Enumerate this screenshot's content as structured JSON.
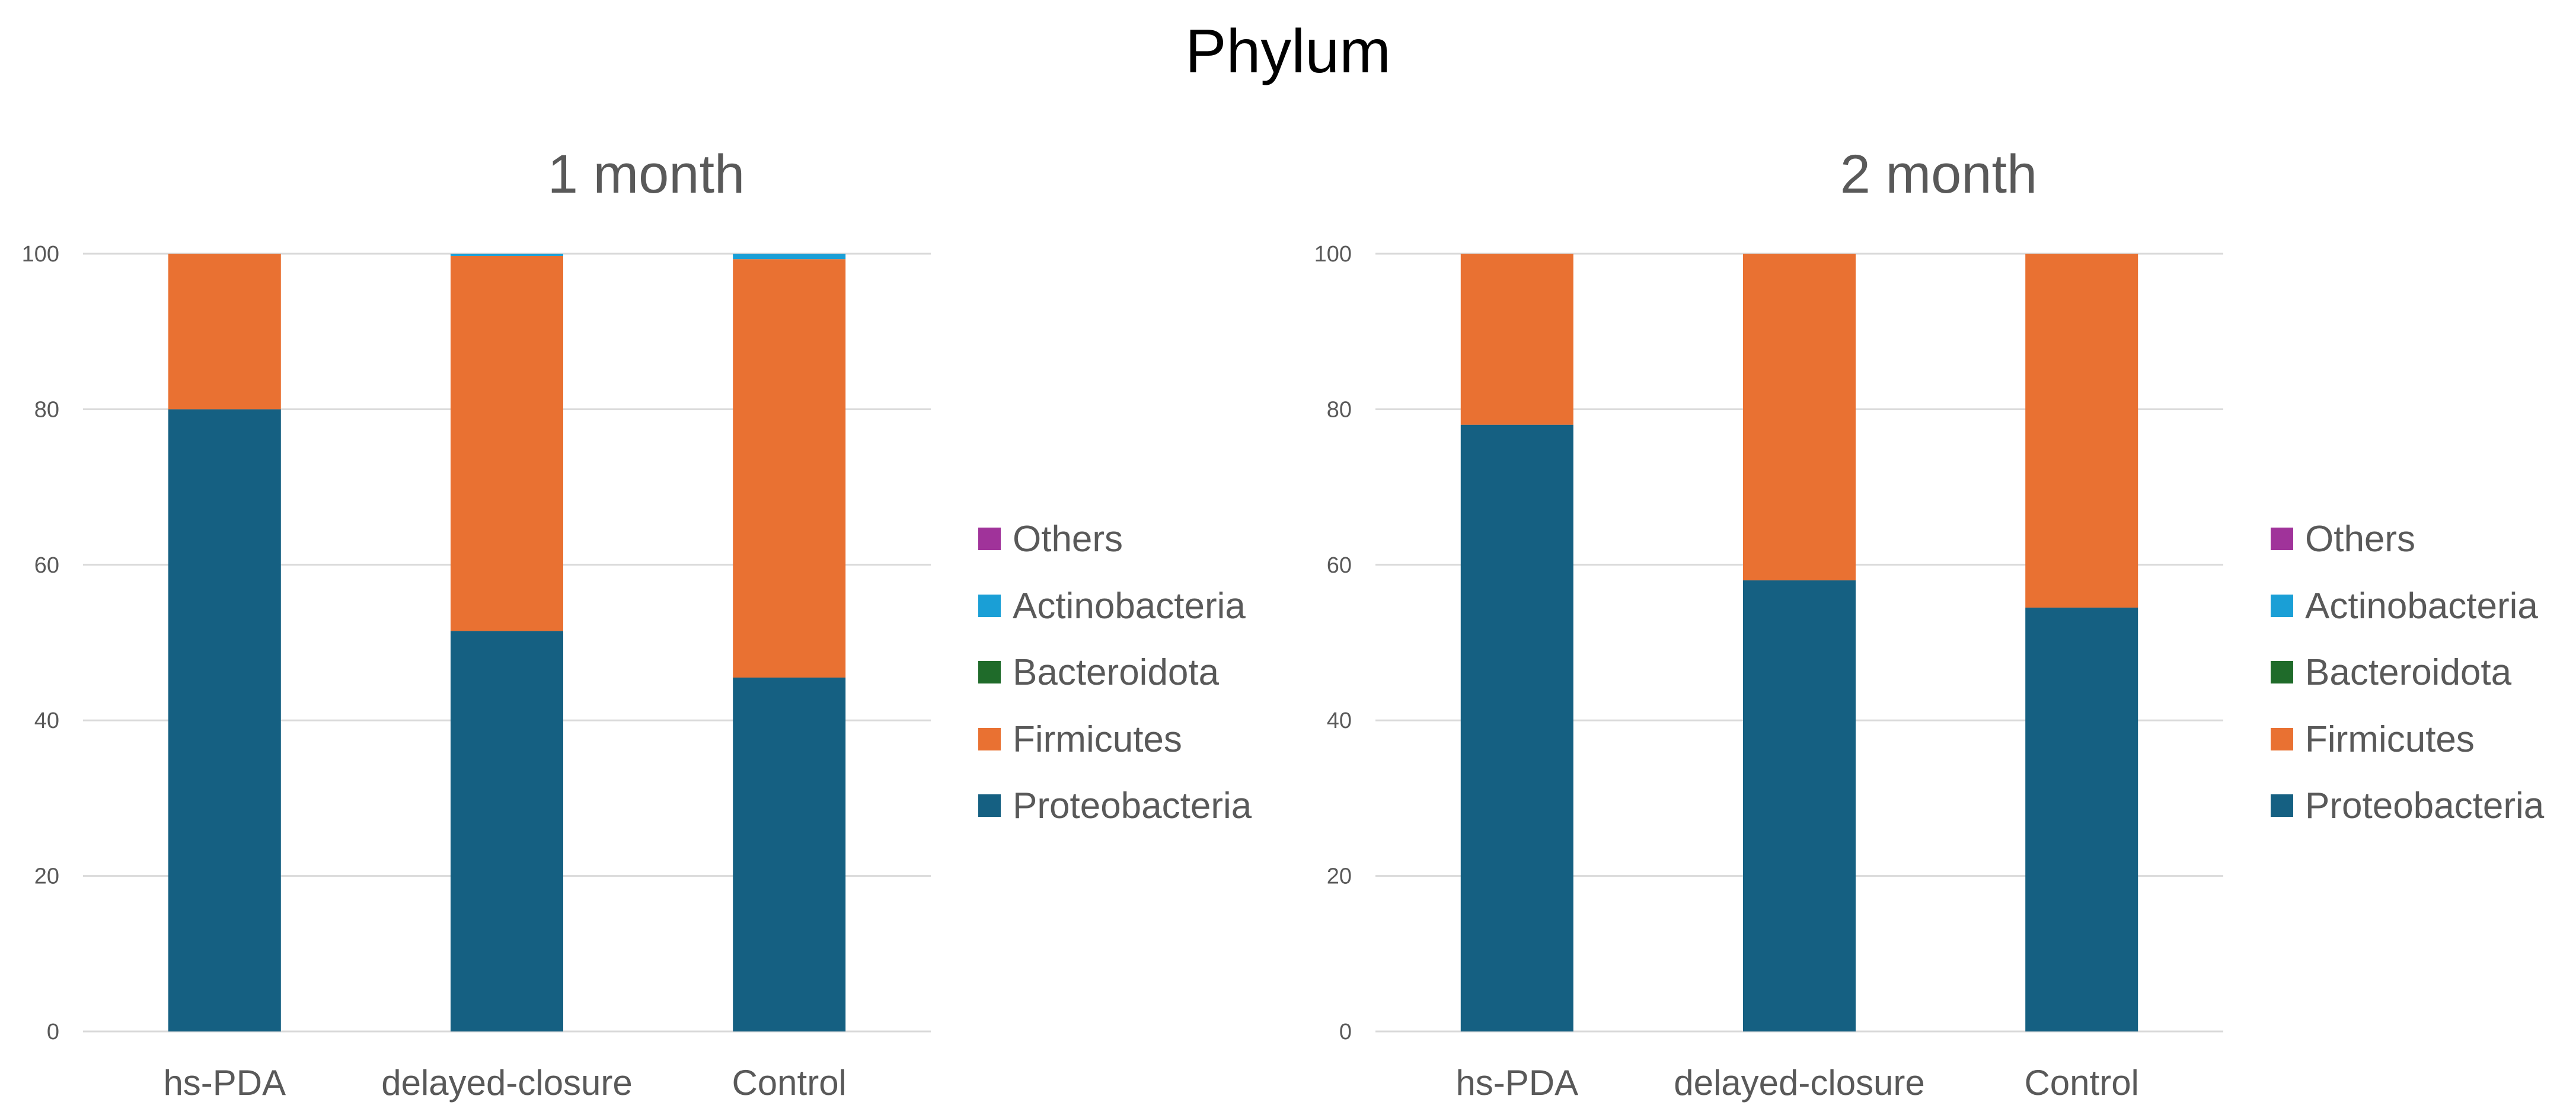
{
  "title": "Phylum",
  "legend_items": [
    {
      "name": "Others",
      "color": "#A0339A"
    },
    {
      "name": "Actinobacteria",
      "color": "#1A9FD6"
    },
    {
      "name": "Bacteroidota",
      "color": "#1F6B2A"
    },
    {
      "name": "Firmicutes",
      "color": "#E97132"
    },
    {
      "name": "Proteobacteria",
      "color": "#156082"
    }
  ],
  "chart_data": [
    {
      "type": "bar",
      "stacked": true,
      "title": "1 month",
      "categories": [
        "hs-PDA",
        "delayed-closure",
        "Control"
      ],
      "yticks": [
        "0",
        "20",
        "40",
        "60",
        "80",
        "100"
      ],
      "ylim": [
        0,
        100
      ],
      "grid": true,
      "legend_position": "right",
      "series": [
        {
          "name": "Proteobacteria",
          "color": "#156082",
          "values": [
            80,
            51.5,
            45.5
          ]
        },
        {
          "name": "Firmicutes",
          "color": "#E97132",
          "values": [
            20,
            48.2,
            53.8
          ]
        },
        {
          "name": "Bacteroidota",
          "color": "#1F6B2A",
          "values": [
            0,
            0,
            0
          ]
        },
        {
          "name": "Actinobacteria",
          "color": "#1A9FD6",
          "values": [
            0,
            0.3,
            0.7
          ]
        },
        {
          "name": "Others",
          "color": "#A0339A",
          "values": [
            0,
            0,
            0
          ]
        }
      ]
    },
    {
      "type": "bar",
      "stacked": true,
      "title": "2 month",
      "categories": [
        "hs-PDA",
        "delayed-closure",
        "Control"
      ],
      "yticks": [
        "0",
        "20",
        "40",
        "60",
        "80",
        "100"
      ],
      "ylim": [
        0,
        100
      ],
      "grid": true,
      "legend_position": "right",
      "series": [
        {
          "name": "Proteobacteria",
          "color": "#156082",
          "values": [
            78,
            58,
            54.5
          ]
        },
        {
          "name": "Firmicutes",
          "color": "#E97132",
          "values": [
            22,
            42,
            45.5
          ]
        },
        {
          "name": "Bacteroidota",
          "color": "#1F6B2A",
          "values": [
            0,
            0,
            0
          ]
        },
        {
          "name": "Actinobacteria",
          "color": "#1A9FD6",
          "values": [
            0,
            0,
            0
          ]
        },
        {
          "name": "Others",
          "color": "#A0339A",
          "values": [
            0,
            0,
            0
          ]
        }
      ]
    }
  ]
}
